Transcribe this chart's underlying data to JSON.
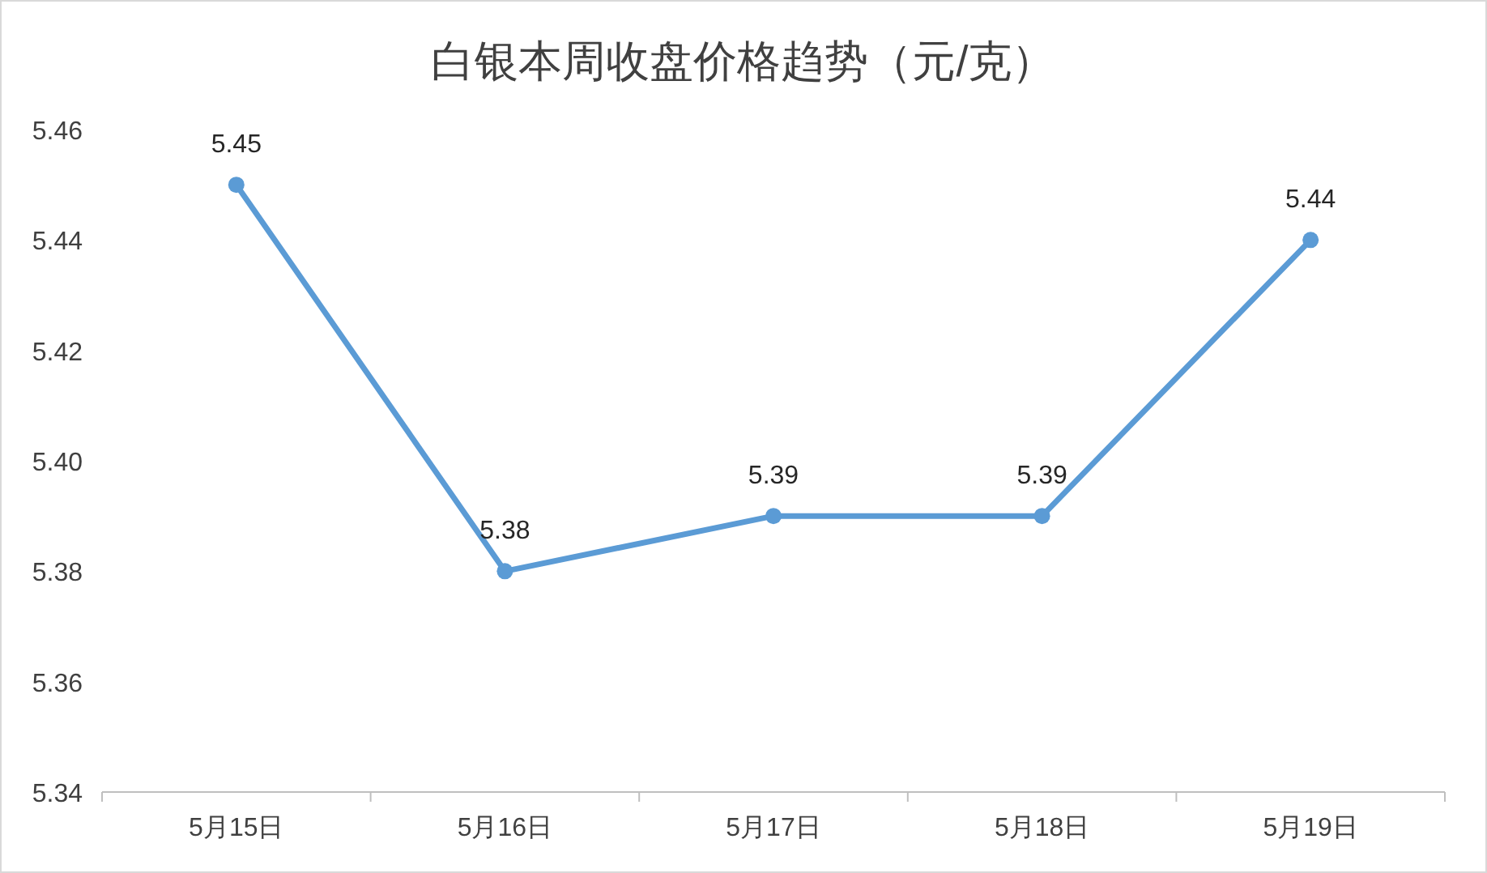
{
  "chart_data": {
    "type": "line",
    "title": "白银本周收盘价格趋势（元/克）",
    "categories": [
      "5月15日",
      "5月16日",
      "5月17日",
      "5月18日",
      "5月19日"
    ],
    "values": [
      5.45,
      5.38,
      5.39,
      5.39,
      5.44
    ],
    "color": "#5b9bd5",
    "marker": "circle",
    "data_labels": true,
    "ylim": [
      5.34,
      5.46
    ],
    "yticks": [
      {
        "value": 5.34,
        "label": "5.34"
      },
      {
        "value": 5.36,
        "label": "5.36"
      },
      {
        "value": 5.38,
        "label": "5.38"
      },
      {
        "value": 5.4,
        "label": "5.40"
      },
      {
        "value": 5.42,
        "label": "5.42"
      },
      {
        "value": 5.44,
        "label": "5.44"
      },
      {
        "value": 5.46,
        "label": "5.46"
      }
    ]
  }
}
